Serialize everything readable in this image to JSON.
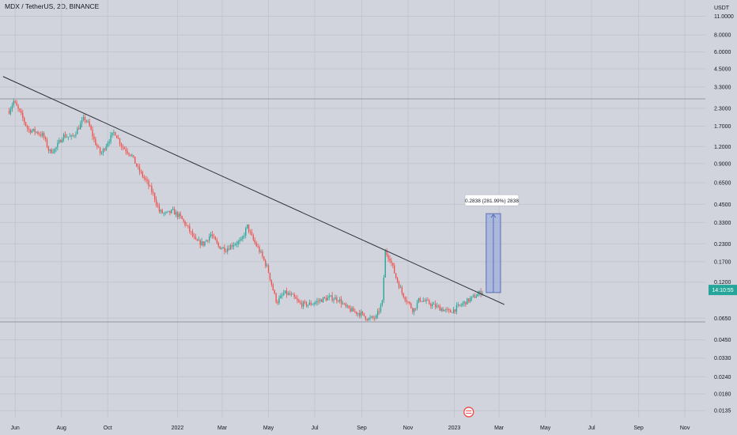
{
  "header": {
    "symbol_title": "MDX / TetherUS, 2D, BINANCE"
  },
  "colors": {
    "background": "#d1d4dc",
    "grid": "#c3c6ce",
    "up": "#26a69a",
    "down": "#ef5350",
    "trendline": "#2a2e39",
    "measure_fill": "#8ea2e0",
    "measure_border": "#5b6fb5",
    "last_price_bg": "#26a69a",
    "text": "#131722",
    "horizontal_line": "#9598a1",
    "event_marker": "#ef5350"
  },
  "chart_data": {
    "type": "candlestick",
    "y_scale": "log",
    "ylim": [
      0.012,
      14.5
    ],
    "y_unit_label": "USDT",
    "y_ticks": [
      "11.0000",
      "8.0000",
      "6.0000",
      "4.5000",
      "3.3000",
      "2.3000",
      "1.7000",
      "1.2000",
      "0.9000",
      "0.6500",
      "0.4500",
      "0.3300",
      "0.2300",
      "0.1700",
      "0.1200",
      "0.0650",
      "0.0450",
      "0.0330",
      "0.0240",
      "0.0180",
      "0.0135"
    ],
    "x_range": [
      "2021-05-12",
      "2023-11-28"
    ],
    "x_ticks": [
      {
        "label": "Jun",
        "date": "2021-06-01"
      },
      {
        "label": "Aug",
        "date": "2021-08-01"
      },
      {
        "label": "Oct",
        "date": "2021-10-01"
      },
      {
        "label": "2022",
        "date": "2022-01-01"
      },
      {
        "label": "Mar",
        "date": "2022-03-01"
      },
      {
        "label": "May",
        "date": "2022-05-01"
      },
      {
        "label": "Jul",
        "date": "2022-07-01"
      },
      {
        "label": "Sep",
        "date": "2022-09-01"
      },
      {
        "label": "Nov",
        "date": "2022-11-01"
      },
      {
        "label": "2023",
        "date": "2023-01-01"
      },
      {
        "label": "Mar",
        "date": "2023-03-01"
      },
      {
        "label": "May",
        "date": "2023-05-01"
      },
      {
        "label": "Jul",
        "date": "2023-07-01"
      },
      {
        "label": "Sep",
        "date": "2023-09-01"
      },
      {
        "label": "Nov",
        "date": "2023-11-01"
      }
    ],
    "price_path": [
      [
        "2021-05-24",
        2.2
      ],
      [
        "2021-05-30",
        2.6
      ],
      [
        "2021-06-10",
        2.0
      ],
      [
        "2021-06-18",
        1.6
      ],
      [
        "2021-06-28",
        1.55
      ],
      [
        "2021-07-08",
        1.45
      ],
      [
        "2021-07-16",
        1.1
      ],
      [
        "2021-07-24",
        1.15
      ],
      [
        "2021-08-03",
        1.45
      ],
      [
        "2021-08-15",
        1.4
      ],
      [
        "2021-08-25",
        1.7
      ],
      [
        "2021-08-31",
        1.95
      ],
      [
        "2021-09-06",
        1.75
      ],
      [
        "2021-09-14",
        1.3
      ],
      [
        "2021-09-22",
        1.05
      ],
      [
        "2021-10-01",
        1.3
      ],
      [
        "2021-10-10",
        1.55
      ],
      [
        "2021-10-20",
        1.2
      ],
      [
        "2021-11-01",
        1.05
      ],
      [
        "2021-11-10",
        0.82
      ],
      [
        "2021-11-22",
        0.65
      ],
      [
        "2021-12-01",
        0.52
      ],
      [
        "2021-12-08",
        0.4
      ],
      [
        "2021-12-16",
        0.38
      ],
      [
        "2021-12-26",
        0.4
      ],
      [
        "2022-01-05",
        0.36
      ],
      [
        "2022-01-15",
        0.3
      ],
      [
        "2022-01-25",
        0.24
      ],
      [
        "2022-02-04",
        0.23
      ],
      [
        "2022-02-14",
        0.27
      ],
      [
        "2022-02-24",
        0.22
      ],
      [
        "2022-03-06",
        0.21
      ],
      [
        "2022-03-16",
        0.23
      ],
      [
        "2022-03-26",
        0.24
      ],
      [
        "2022-04-03",
        0.31
      ],
      [
        "2022-04-10",
        0.25
      ],
      [
        "2022-04-20",
        0.2
      ],
      [
        "2022-04-30",
        0.15
      ],
      [
        "2022-05-08",
        0.1
      ],
      [
        "2022-05-12",
        0.085
      ],
      [
        "2022-05-22",
        0.1
      ],
      [
        "2022-06-01",
        0.095
      ],
      [
        "2022-06-11",
        0.083
      ],
      [
        "2022-06-22",
        0.082
      ],
      [
        "2022-07-02",
        0.085
      ],
      [
        "2022-07-12",
        0.09
      ],
      [
        "2022-07-22",
        0.092
      ],
      [
        "2022-08-01",
        0.09
      ],
      [
        "2022-08-11",
        0.078
      ],
      [
        "2022-08-21",
        0.073
      ],
      [
        "2022-08-31",
        0.07
      ],
      [
        "2022-09-10",
        0.064
      ],
      [
        "2022-09-20",
        0.066
      ],
      [
        "2022-09-28",
        0.085
      ],
      [
        "2022-10-02",
        0.2
      ],
      [
        "2022-10-08",
        0.18
      ],
      [
        "2022-10-16",
        0.13
      ],
      [
        "2022-10-24",
        0.1
      ],
      [
        "2022-11-01",
        0.085
      ],
      [
        "2022-11-08",
        0.074
      ],
      [
        "2022-11-16",
        0.09
      ],
      [
        "2022-11-26",
        0.085
      ],
      [
        "2022-12-06",
        0.08
      ],
      [
        "2022-12-16",
        0.076
      ],
      [
        "2022-12-26",
        0.072
      ],
      [
        "2023-01-05",
        0.078
      ],
      [
        "2023-01-15",
        0.085
      ],
      [
        "2023-01-25",
        0.092
      ],
      [
        "2023-02-04",
        0.1
      ],
      [
        "2023-02-08",
        0.103
      ]
    ],
    "trendline": {
      "from": [
        "2021-05-16",
        3.95
      ],
      "to": [
        "2023-03-08",
        0.082
      ]
    },
    "horizontal_levels": [
      2.7,
      0.061
    ],
    "measure_tool": {
      "from_date": "2023-02-12",
      "to_date": "2023-03-03",
      "low": 0.1005,
      "high": 0.384,
      "label": "0.2838 (281.99%) 2838"
    },
    "last_price": {
      "label": "14:10:55",
      "value": 0.105
    }
  }
}
